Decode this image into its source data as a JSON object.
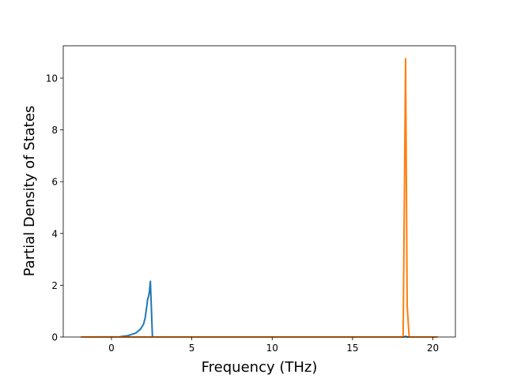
{
  "chart_data": {
    "type": "line",
    "title": "",
    "xlabel": "Frequency (THz)",
    "ylabel": "Partial Density of States",
    "xlim": [
      -3.0,
      21.4
    ],
    "ylim": [
      0,
      11.25
    ],
    "xticks": [
      0,
      5,
      10,
      15,
      20
    ],
    "yticks": [
      0,
      2,
      4,
      6,
      8,
      10
    ],
    "grid": false,
    "series": [
      {
        "color": "#1f77b4",
        "x": [
          -1.9,
          0.5,
          1.0,
          1.5,
          1.8,
          2.0,
          2.1,
          2.2,
          2.25,
          2.3,
          2.35,
          2.42,
          2.55,
          18.2,
          18.3,
          18.4,
          20.3
        ],
        "y": [
          0,
          0.01,
          0.05,
          0.15,
          0.3,
          0.5,
          0.75,
          1.2,
          1.45,
          1.55,
          1.7,
          2.15,
          0,
          0,
          0.03,
          0,
          0
        ]
      },
      {
        "color": "#ff7f0e",
        "x": [
          -1.9,
          18.15,
          18.3,
          18.4,
          18.52,
          20.3
        ],
        "y": [
          0,
          0,
          10.75,
          1.2,
          0,
          0
        ]
      }
    ]
  }
}
